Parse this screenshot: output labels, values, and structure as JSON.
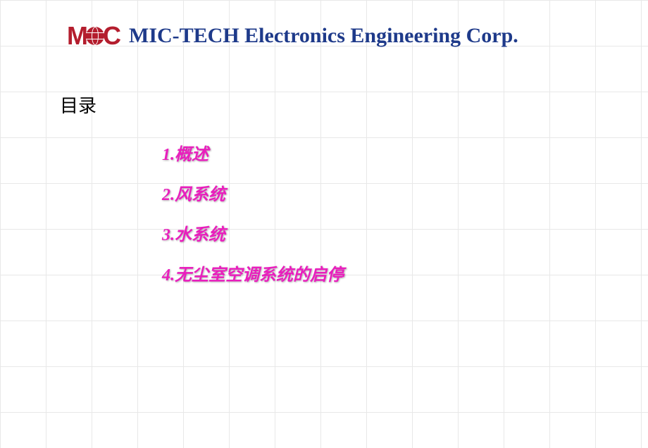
{
  "header": {
    "logo_letters": {
      "m": "M",
      "c": "C"
    },
    "company_name": "MIC-TECH Electronics Engineering Corp.",
    "company_name_color": "#1e3a8a"
  },
  "toc": {
    "title": "目录",
    "title_color": "#000000",
    "items": [
      {
        "text": "1.概述",
        "color": "#e91ebd"
      },
      {
        "text": "2.风系统",
        "color": "#e91ebd"
      },
      {
        "text": "3.水系统",
        "color": "#e91ebd"
      },
      {
        "text": "4.无尘室空调系统的启停",
        "color": "#e91ebd"
      }
    ]
  },
  "styling": {
    "logo_color": "#b41e2e",
    "grid_color": "#e8e8e8",
    "grid_size": 65,
    "background_color": "#ffffff"
  }
}
